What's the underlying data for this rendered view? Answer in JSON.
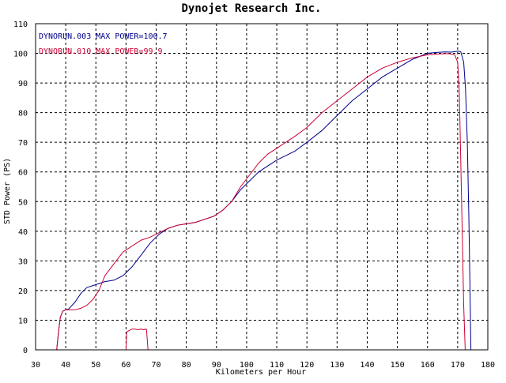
{
  "chart_data": {
    "type": "line",
    "title": "Dynojet  Research  Inc.",
    "xlabel": "Kilometers per Hour",
    "ylabel": "STD Power (PS)",
    "xlim": [
      30,
      180
    ],
    "ylim": [
      0,
      110
    ],
    "xticks": [
      30,
      40,
      50,
      60,
      70,
      80,
      90,
      100,
      110,
      120,
      130,
      140,
      150,
      160,
      170,
      180
    ],
    "yticks": [
      0,
      10,
      20,
      30,
      40,
      50,
      60,
      70,
      80,
      90,
      100,
      110
    ],
    "grid": true,
    "grid_style": "dashed",
    "legend_position": "top-left",
    "series": [
      {
        "name": "DYNORUN.003  MAX POWER=100.7",
        "color": "#00008b",
        "x": [
          37.0,
          37.6,
          38.2,
          39.0,
          40.0,
          41.0,
          43.0,
          45.0,
          47.0,
          50.0,
          53.0,
          56.0,
          59.0,
          62.0,
          65.0,
          68.0,
          71.0,
          74.0,
          77.0,
          80.0,
          83.0,
          86.0,
          89.0,
          92.0,
          95.0,
          98.0,
          101.0,
          104.0,
          107.0,
          110.0,
          113.0,
          116.0,
          120.0,
          125.0,
          130.0,
          135.0,
          140.0,
          145.0,
          150.0,
          155.0,
          160.0,
          163.0,
          166.0,
          168.0,
          170.0,
          171.0,
          172.0,
          172.6,
          173.2,
          173.7,
          174.1,
          174.4
        ],
        "values": [
          0,
          6,
          11,
          13,
          13.5,
          13.8,
          16,
          19,
          21,
          22,
          23,
          23.5,
          25,
          28,
          32,
          36,
          39,
          41,
          42,
          42.5,
          43,
          44,
          45,
          47,
          50,
          54,
          57,
          60,
          62,
          64,
          65.5,
          67,
          70,
          74,
          79,
          84,
          88,
          92,
          95,
          98,
          100,
          100.3,
          100.5,
          100.4,
          100.7,
          100.6,
          97,
          88,
          70,
          45,
          20,
          0
        ]
      },
      {
        "name": "DYNORUN.010  MAX POWER=99.9",
        "color": "#cc0033",
        "x": [
          37.0,
          37.6,
          38.2,
          39.0,
          40.0,
          41.0,
          43.0,
          45.0,
          47.0,
          49.0,
          51.0,
          53.0,
          56.0,
          59.0,
          62.0,
          65.0,
          68.0,
          71.0,
          74.0,
          77.0,
          80.0,
          83.0,
          86.0,
          89.0,
          92.0,
          95.0,
          98.0,
          101.0,
          104.0,
          107.0,
          110.0,
          113.0,
          116.0,
          120.0,
          125.0,
          130.0,
          135.0,
          140.0,
          145.0,
          150.0,
          155.0,
          160.0,
          164.0,
          167.0,
          169.0,
          170.0,
          170.5,
          171.0,
          171.5,
          172.0,
          172.5
        ],
        "values": [
          0,
          6,
          11,
          13,
          13.5,
          13.5,
          13.5,
          14,
          15,
          17,
          20,
          25,
          29,
          33,
          35,
          37,
          38,
          39.5,
          41,
          42,
          42.5,
          43,
          44,
          45,
          47,
          50,
          55,
          59,
          63,
          66,
          68,
          70,
          72,
          75,
          80,
          84,
          88,
          92,
          95,
          97,
          98.5,
          99.5,
          99.8,
          99.9,
          99.5,
          97,
          88,
          65,
          40,
          15,
          0
        ]
      },
      {
        "name": "",
        "color": "#cc0033",
        "x": [
          60.0,
          60.2,
          61.0,
          62.0,
          63.0,
          64.0,
          65.0,
          65.7,
          66.0,
          66.3,
          66.8,
          67.3
        ],
        "values": [
          0,
          6,
          6.5,
          7,
          7,
          6.8,
          7,
          6.8,
          6.8,
          7.0,
          6.9,
          0
        ]
      }
    ]
  }
}
